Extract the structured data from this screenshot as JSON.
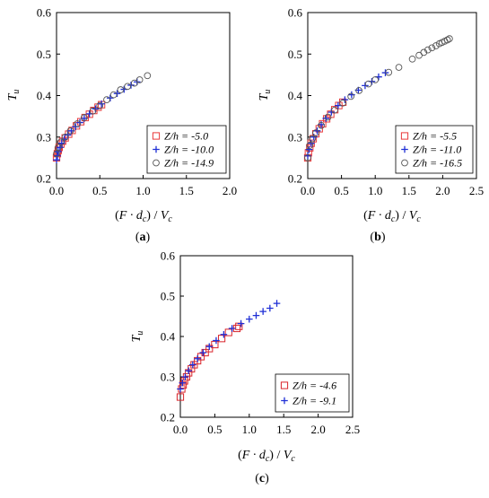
{
  "chart_data": [
    {
      "type": "scatter",
      "panel_label": "(a)",
      "panel_letter": "a",
      "xlabel": "(F · dc) / Vc",
      "ylabel": "Tu",
      "xlim": [
        0,
        2.0
      ],
      "ylim": [
        0.2,
        0.6
      ],
      "xticks": [
        "0.0",
        "0.5",
        "1.0",
        "1.5",
        "2.0"
      ],
      "yticks": [
        "0.2",
        "0.3",
        "0.4",
        "0.5",
        "0.6"
      ],
      "xtick_values": [
        0,
        0.5,
        1.0,
        1.5,
        2.0
      ],
      "ytick_values": [
        0.2,
        0.3,
        0.4,
        0.5,
        0.6
      ],
      "legend_position": "lower-right",
      "series": [
        {
          "name": "Z/h = -5.0",
          "marker": "square",
          "color": "#e8393a",
          "points": [
            [
              0.0,
              0.25
            ],
            [
              0.01,
              0.26
            ],
            [
              0.02,
              0.268
            ],
            [
              0.03,
              0.275
            ],
            [
              0.05,
              0.283
            ],
            [
              0.07,
              0.29
            ],
            [
              0.1,
              0.298
            ],
            [
              0.14,
              0.307
            ],
            [
              0.18,
              0.316
            ],
            [
              0.23,
              0.327
            ],
            [
              0.28,
              0.337
            ],
            [
              0.33,
              0.347
            ],
            [
              0.38,
              0.355
            ],
            [
              0.43,
              0.364
            ],
            [
              0.48,
              0.372
            ],
            [
              0.52,
              0.378
            ]
          ]
        },
        {
          "name": "Z/h = -10.0",
          "marker": "plus",
          "color": "#1f2fd6",
          "points": [
            [
              0.0,
              0.245
            ],
            [
              0.01,
              0.255
            ],
            [
              0.02,
              0.265
            ],
            [
              0.04,
              0.275
            ],
            [
              0.06,
              0.285
            ],
            [
              0.09,
              0.295
            ],
            [
              0.13,
              0.305
            ],
            [
              0.17,
              0.315
            ],
            [
              0.22,
              0.325
            ],
            [
              0.27,
              0.335
            ],
            [
              0.32,
              0.345
            ],
            [
              0.38,
              0.356
            ],
            [
              0.45,
              0.368
            ],
            [
              0.52,
              0.38
            ],
            [
              0.62,
              0.394
            ],
            [
              0.7,
              0.405
            ],
            [
              0.78,
              0.415
            ],
            [
              0.86,
              0.425
            ],
            [
              0.93,
              0.433
            ]
          ]
        },
        {
          "name": "Z/h = -14.9",
          "marker": "circle",
          "color": "#555555",
          "points": [
            [
              0.0,
              0.26
            ],
            [
              0.02,
              0.275
            ],
            [
              0.05,
              0.288
            ],
            [
              0.1,
              0.3
            ],
            [
              0.16,
              0.315
            ],
            [
              0.24,
              0.332
            ],
            [
              0.32,
              0.347
            ],
            [
              0.42,
              0.363
            ],
            [
              0.5,
              0.376
            ],
            [
              0.58,
              0.39
            ],
            [
              0.66,
              0.402
            ],
            [
              0.74,
              0.414
            ],
            [
              0.82,
              0.422
            ],
            [
              0.9,
              0.43
            ],
            [
              0.96,
              0.438
            ],
            [
              1.05,
              0.448
            ]
          ]
        }
      ]
    },
    {
      "type": "scatter",
      "panel_label": "(b)",
      "panel_letter": "b",
      "xlabel": "(F · dc) / Vc",
      "ylabel": "Tu",
      "xlim": [
        0,
        2.5
      ],
      "ylim": [
        0.2,
        0.6
      ],
      "xticks": [
        "0.0",
        "0.5",
        "1.0",
        "1.5",
        "2.0",
        "2.5"
      ],
      "yticks": [
        "0.2",
        "0.3",
        "0.4",
        "0.5",
        "0.6"
      ],
      "xtick_values": [
        0,
        0.5,
        1.0,
        1.5,
        2.0,
        2.5
      ],
      "ytick_values": [
        0.2,
        0.3,
        0.4,
        0.5,
        0.6
      ],
      "legend_position": "lower-right",
      "series": [
        {
          "name": "Z/h = -5.5",
          "marker": "square",
          "color": "#e8393a",
          "points": [
            [
              0.0,
              0.25
            ],
            [
              0.01,
              0.262
            ],
            [
              0.03,
              0.274
            ],
            [
              0.05,
              0.285
            ],
            [
              0.08,
              0.296
            ],
            [
              0.12,
              0.308
            ],
            [
              0.17,
              0.32
            ],
            [
              0.22,
              0.332
            ],
            [
              0.28,
              0.344
            ],
            [
              0.34,
              0.355
            ],
            [
              0.4,
              0.366
            ],
            [
              0.46,
              0.376
            ],
            [
              0.52,
              0.384
            ]
          ]
        },
        {
          "name": "Z/h = -11.0",
          "marker": "plus",
          "color": "#1f2fd6",
          "points": [
            [
              0.0,
              0.255
            ],
            [
              0.02,
              0.27
            ],
            [
              0.05,
              0.285
            ],
            [
              0.09,
              0.3
            ],
            [
              0.14,
              0.315
            ],
            [
              0.2,
              0.33
            ],
            [
              0.27,
              0.345
            ],
            [
              0.35,
              0.36
            ],
            [
              0.45,
              0.376
            ],
            [
              0.55,
              0.39
            ],
            [
              0.65,
              0.402
            ],
            [
              0.75,
              0.413
            ],
            [
              0.85,
              0.424
            ],
            [
              0.95,
              0.434
            ],
            [
              1.05,
              0.445
            ],
            [
              1.15,
              0.455
            ]
          ]
        },
        {
          "name": "Z/h = -16.5",
          "marker": "circle",
          "color": "#555555",
          "points": [
            [
              0.0,
              0.25
            ],
            [
              0.03,
              0.28
            ],
            [
              0.07,
              0.296
            ],
            [
              0.12,
              0.31
            ],
            [
              0.2,
              0.328
            ],
            [
              0.3,
              0.348
            ],
            [
              0.4,
              0.365
            ],
            [
              0.52,
              0.382
            ],
            [
              0.64,
              0.398
            ],
            [
              0.76,
              0.412
            ],
            [
              0.9,
              0.428
            ],
            [
              1.0,
              0.438
            ],
            [
              1.2,
              0.456
            ],
            [
              1.35,
              0.468
            ],
            [
              1.55,
              0.488
            ],
            [
              1.65,
              0.497
            ],
            [
              1.72,
              0.504
            ],
            [
              1.78,
              0.51
            ],
            [
              1.84,
              0.515
            ],
            [
              1.9,
              0.52
            ],
            [
              1.95,
              0.525
            ],
            [
              1.99,
              0.528
            ],
            [
              2.03,
              0.531
            ],
            [
              2.07,
              0.534
            ],
            [
              2.1,
              0.537
            ]
          ]
        }
      ]
    },
    {
      "type": "scatter",
      "panel_label": "(c)",
      "panel_letter": "c",
      "xlabel": "(F · dc) / Vc",
      "ylabel": "Tu",
      "xlim": [
        0,
        2.5
      ],
      "ylim": [
        0.2,
        0.6
      ],
      "xticks": [
        "0.0",
        "0.5",
        "1.0",
        "1.5",
        "2.0",
        "2.5"
      ],
      "yticks": [
        "0.2",
        "0.3",
        "0.4",
        "0.5",
        "0.6"
      ],
      "xtick_values": [
        0,
        0.5,
        1.0,
        1.5,
        2.0,
        2.5
      ],
      "ytick_values": [
        0.2,
        0.3,
        0.4,
        0.5,
        0.6
      ],
      "legend_position": "lower-right",
      "series": [
        {
          "name": "Z/h = -4.6",
          "marker": "square",
          "color": "#d9232a",
          "points": [
            [
              0.0,
              0.25
            ],
            [
              0.02,
              0.27
            ],
            [
              0.04,
              0.28
            ],
            [
              0.06,
              0.29
            ],
            [
              0.09,
              0.3
            ],
            [
              0.12,
              0.31
            ],
            [
              0.16,
              0.32
            ],
            [
              0.2,
              0.33
            ],
            [
              0.25,
              0.34
            ],
            [
              0.3,
              0.35
            ],
            [
              0.36,
              0.36
            ],
            [
              0.42,
              0.37
            ],
            [
              0.5,
              0.38
            ],
            [
              0.6,
              0.395
            ],
            [
              0.7,
              0.41
            ],
            [
              0.82,
              0.42
            ],
            [
              0.85,
              0.425
            ]
          ]
        },
        {
          "name": "Z/h = -9.1",
          "marker": "plus",
          "color": "#1f2fd6",
          "points": [
            [
              0.0,
              0.27
            ],
            [
              0.03,
              0.285
            ],
            [
              0.07,
              0.3
            ],
            [
              0.12,
              0.315
            ],
            [
              0.18,
              0.33
            ],
            [
              0.25,
              0.345
            ],
            [
              0.33,
              0.36
            ],
            [
              0.42,
              0.375
            ],
            [
              0.52,
              0.39
            ],
            [
              0.63,
              0.405
            ],
            [
              0.75,
              0.42
            ],
            [
              0.88,
              0.432
            ],
            [
              1.0,
              0.443
            ],
            [
              1.1,
              0.452
            ],
            [
              1.2,
              0.462
            ],
            [
              1.3,
              0.47
            ],
            [
              1.4,
              0.482
            ]
          ]
        }
      ]
    }
  ]
}
